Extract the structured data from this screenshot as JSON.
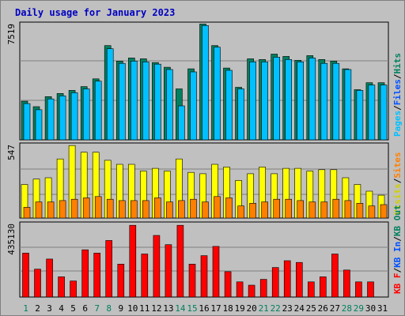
{
  "chart_data": {
    "type": "bar",
    "title": "Daily usage for January 2023",
    "categories": [
      "1",
      "2",
      "3",
      "4",
      "5",
      "6",
      "7",
      "8",
      "9",
      "10",
      "11",
      "12",
      "13",
      "14",
      "15",
      "16",
      "17",
      "18",
      "19",
      "20",
      "21",
      "22",
      "23",
      "24",
      "25",
      "26",
      "27",
      "28",
      "29",
      "30",
      "31"
    ],
    "weekend_days": [
      "1",
      "7",
      "8",
      "14",
      "15",
      "21",
      "22",
      "28",
      "29"
    ],
    "panels": [
      {
        "max_label": "7519",
        "ymax": 7519,
        "right_labels": [
          {
            "text": "Pages",
            "color": "#00c0ff"
          },
          {
            "text": "Files",
            "color": "#0050ff"
          },
          {
            "text": "Hits",
            "color": "#00805f"
          }
        ],
        "series": [
          {
            "name": "Hits",
            "color": "#00805f",
            "values": [
              2500,
              2150,
              2800,
              3000,
              3200,
              3450,
              3950,
              6100,
              5100,
              5300,
              5250,
              5000,
              4700,
              3300,
              4600,
              7500,
              6100,
              4650,
              3400,
              5250,
              5200,
              5550,
              5400,
              5150,
              5450,
              5200,
              5100,
              4600,
              3250,
              3700,
              3700
            ]
          },
          {
            "name": "Files",
            "color": "#00c0ff",
            "values": [
              2350,
              1950,
              2650,
              2850,
              3050,
              3300,
              3800,
              5900,
              4950,
              5100,
              5050,
              4900,
              4550,
              2200,
              4400,
              7400,
              6000,
              4500,
              3300,
              5050,
              5050,
              5350,
              5200,
              5050,
              5300,
              4950,
              4950,
              4550,
              3200,
              3550,
              3550
            ]
          }
        ]
      },
      {
        "max_label": "547",
        "ymax": 547,
        "right_labels": [
          {
            "text": "Visits",
            "color": "#d0d000"
          },
          {
            "text": "Sites",
            "color": "#ff8000"
          }
        ],
        "series": [
          {
            "name": "Visits",
            "color": "#ffff00",
            "values": [
              250,
              290,
              300,
              440,
              540,
              490,
              490,
              430,
              400,
              400,
              350,
              370,
              350,
              440,
              340,
              330,
              400,
              380,
              280,
              330,
              380,
              330,
              370,
              370,
              350,
              360,
              360,
              300,
              250,
              200,
              170
            ]
          },
          {
            "name": "Sites",
            "color": "#ff8000",
            "values": [
              80,
              120,
              120,
              130,
              140,
              150,
              160,
              140,
              130,
              130,
              130,
              150,
              120,
              130,
              140,
              120,
              160,
              150,
              90,
              110,
              120,
              140,
              140,
              130,
              120,
              120,
              140,
              130,
              110,
              90,
              100
            ]
          }
        ]
      },
      {
        "max_label": "435130",
        "ymax": 435130,
        "right_labels": [
          {
            "text": "KB F",
            "color": "#ff0000"
          },
          {
            "text": "KB In",
            "color": "#0050ff"
          },
          {
            "text": "KB Out",
            "color": "#00805f"
          }
        ],
        "series": [
          {
            "name": "KB F",
            "color": "#ff0000",
            "values": [
              260000,
              165000,
              225000,
              120000,
              95000,
              280000,
              260000,
              335000,
              195000,
              425000,
              255000,
              365000,
              310000,
              425000,
              195000,
              245000,
              300000,
              150000,
              90000,
              70000,
              105000,
              175000,
              215000,
              205000,
              90000,
              120000,
              255000,
              160000,
              90000,
              90000,
              0
            ]
          }
        ]
      }
    ],
    "layout_hint": "three stacked panels sharing day axis"
  }
}
